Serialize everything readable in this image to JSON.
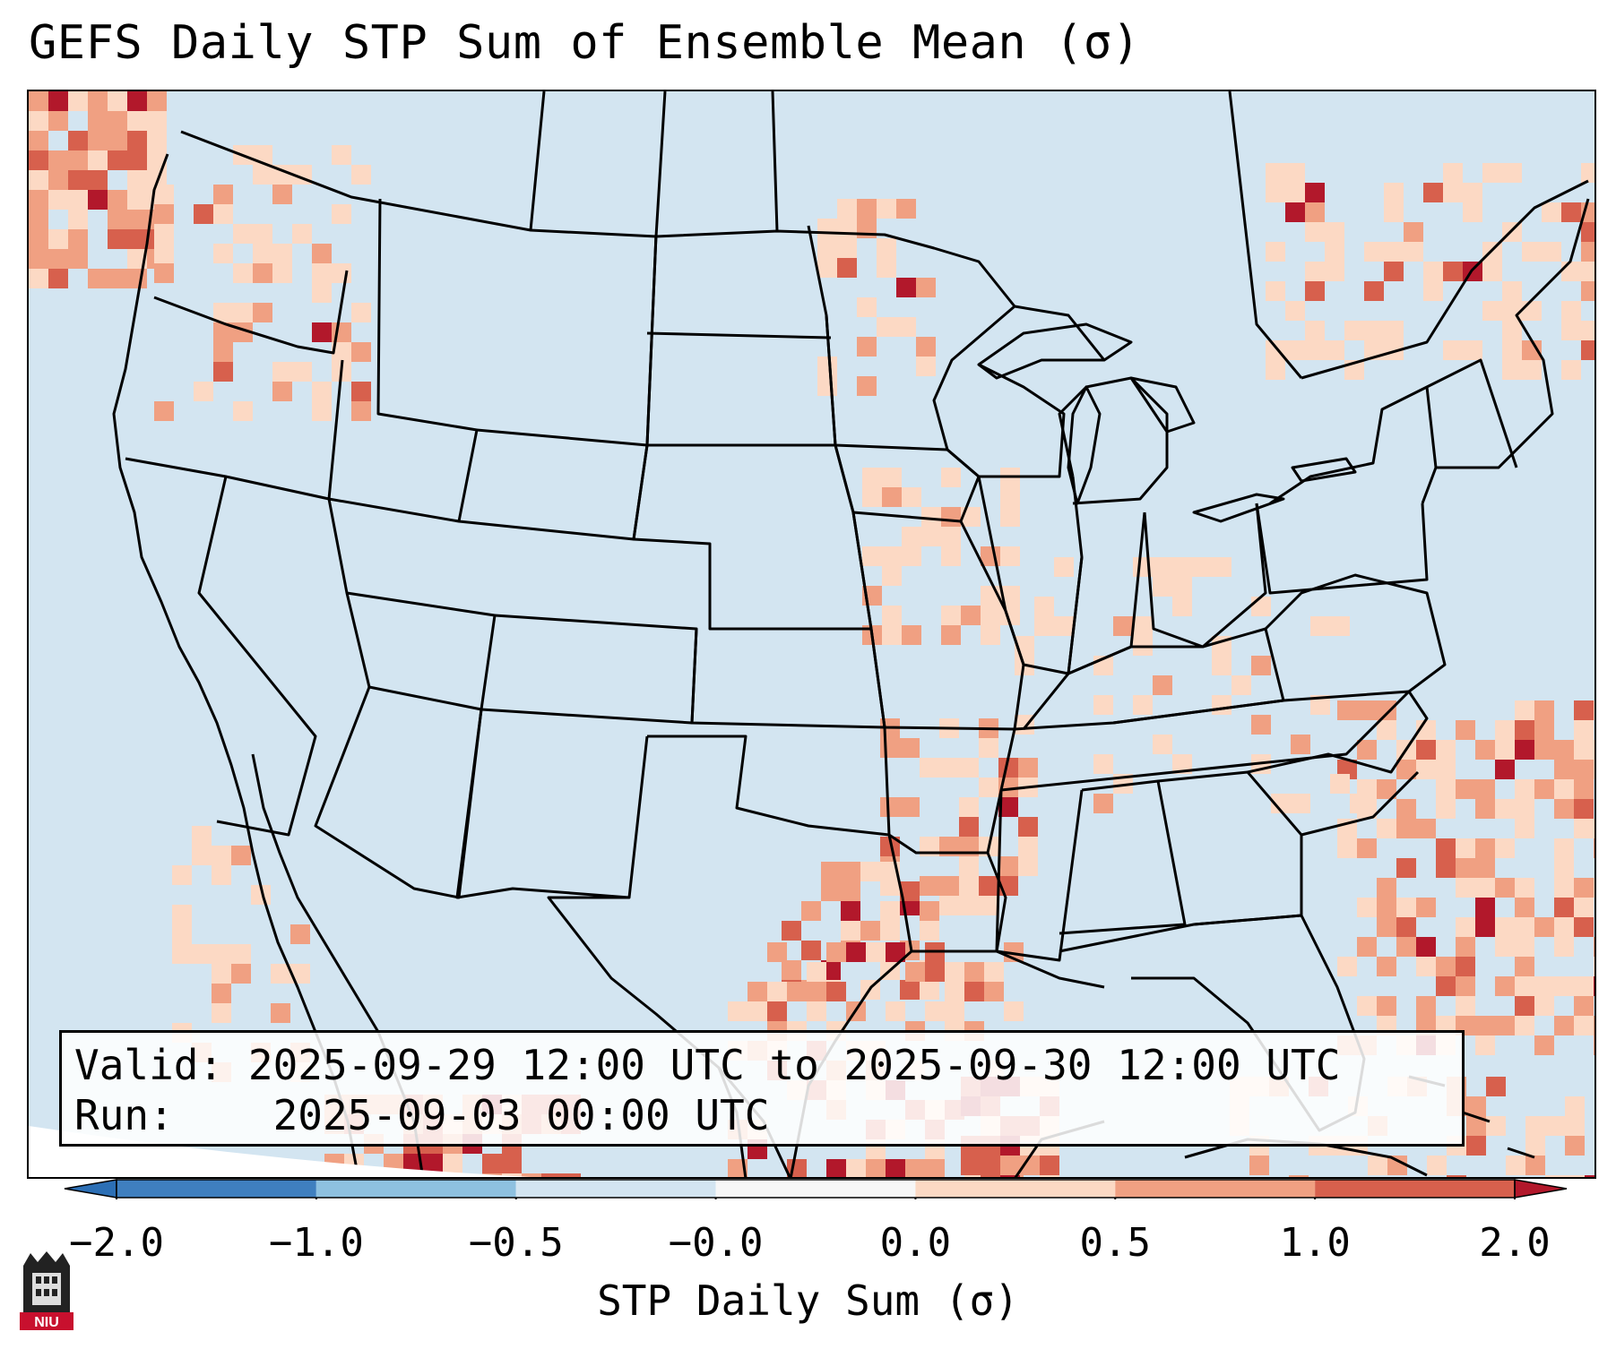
{
  "title": "GEFS Daily STP Sum of Ensemble Mean (σ)",
  "info": {
    "valid_label": "Valid:",
    "valid_value": "2025-09-29 12:00 UTC to 2025-09-30 12:00 UTC",
    "run_label": "Run:",
    "run_value": "2025-09-03 00:00 UTC"
  },
  "colorbar": {
    "label": "STP Daily Sum (σ)",
    "ticks": [
      "−2.0",
      "−1.0",
      "−0.5",
      "−0.0",
      "0.0",
      "0.5",
      "1.0",
      "2.0"
    ],
    "bins": [
      {
        "color": "#3f7fbf"
      },
      {
        "color": "#8ec1e0"
      },
      {
        "color": "#d3e5f1"
      },
      {
        "color": "#f7f7f7"
      },
      {
        "color": "#fcd9c4"
      },
      {
        "color": "#f0a082"
      },
      {
        "color": "#d7604d"
      }
    ],
    "under_color": "#2c6fb5",
    "over_color": "#b2182b"
  },
  "map": {
    "ocean_color": "#d3e5f1",
    "land_color": "#d3e5f1",
    "boundary_color": "#000000"
  },
  "logo": {
    "text": "NIU",
    "color": "#c8102e"
  }
}
